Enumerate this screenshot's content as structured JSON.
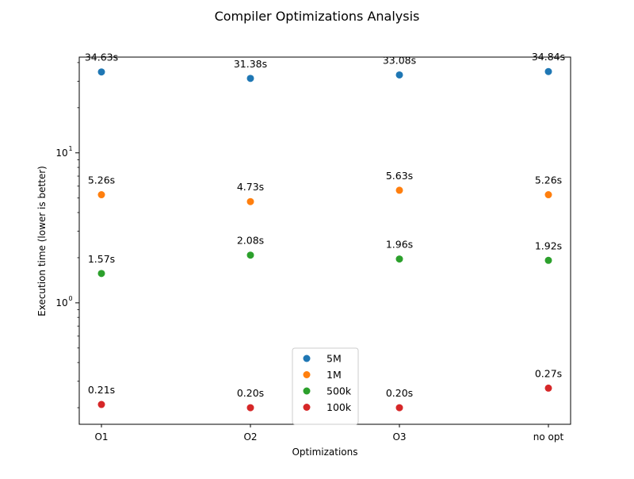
{
  "chart_data": {
    "type": "scatter",
    "title": "Compiler Optimizations Analysis",
    "xlabel": "Optimizations",
    "ylabel": "Execution time (lower is better)",
    "categories": [
      "O1",
      "O2",
      "O3",
      "no opt"
    ],
    "yscale": "log",
    "ylim": [
      0.155,
      43.5
    ],
    "y_ticks": [
      {
        "value": 1,
        "label": "10",
        "exp": "0"
      },
      {
        "value": 10,
        "label": "10",
        "exp": "1"
      }
    ],
    "grid": false,
    "legend_position": "lower-center",
    "series": [
      {
        "name": "5M",
        "color": "#1f77b4",
        "values": [
          34.63,
          31.38,
          33.08,
          34.84
        ],
        "labels": [
          "34.63s",
          "31.38s",
          "33.08s",
          "34.84s"
        ]
      },
      {
        "name": "1M",
        "color": "#ff7f0e",
        "values": [
          5.26,
          4.73,
          5.63,
          5.26
        ],
        "labels": [
          "5.26s",
          "4.73s",
          "5.63s",
          "5.26s"
        ]
      },
      {
        "name": "500k",
        "color": "#2ca02c",
        "values": [
          1.57,
          2.08,
          1.96,
          1.92
        ],
        "labels": [
          "1.57s",
          "2.08s",
          "1.96s",
          "1.92s"
        ]
      },
      {
        "name": "100k",
        "color": "#d62728",
        "values": [
          0.21,
          0.2,
          0.2,
          0.27
        ],
        "labels": [
          "0.21s",
          "0.20s",
          "0.20s",
          "0.27s"
        ]
      }
    ]
  }
}
